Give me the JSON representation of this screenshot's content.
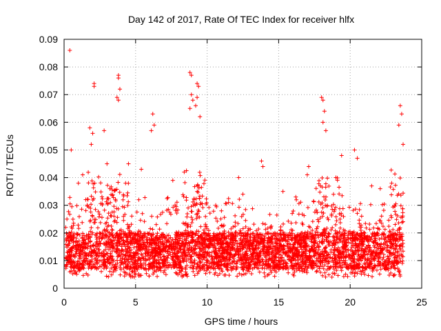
{
  "chart_data": {
    "type": "scatter",
    "title": "Day 142 of 2017, Rate Of TEC Index for receiver hlfx",
    "xlabel": "GPS time / hours",
    "ylabel": "ROTI / TECUs",
    "xlim": [
      0,
      25
    ],
    "ylim": [
      0,
      0.09
    ],
    "x_ticks": [
      "0",
      "5",
      "10",
      "15",
      "20",
      "25"
    ],
    "y_ticks": [
      "0",
      "0.01",
      "0.02",
      "0.03",
      "0.04",
      "0.05",
      "0.06",
      "0.07",
      "0.08",
      "0.09"
    ],
    "grid": true,
    "marker": "+",
    "color": "#ff0000",
    "series": [
      {
        "x": [
          0.4,
          0.5,
          2.1,
          2.1,
          3.8,
          3.8,
          3.9,
          3.7,
          3.8,
          8.8,
          8.9,
          8.9,
          9.0,
          8.8,
          9.3,
          9.4,
          9.3,
          9.2,
          9.5,
          6.2,
          6.3,
          6.1,
          1.8,
          2.0,
          1.9,
          2.8,
          13.8,
          13.9,
          17.1,
          17.0,
          18.0,
          18.1,
          18.2,
          18.1,
          18.3,
          23.5,
          23.6,
          23.4,
          23.7,
          20.3,
          20.5,
          19.4,
          4.5,
          5.4,
          12.2,
          12.5,
          0.2,
          1.0,
          1.3,
          3.0,
          3.2,
          4.3,
          7.6,
          8.4,
          10.6,
          11.0,
          11.5,
          15.3,
          16.2,
          19.0,
          21.5,
          22.1,
          22.9
        ],
        "y": [
          0.086,
          0.05,
          0.073,
          0.074,
          0.077,
          0.076,
          0.072,
          0.069,
          0.068,
          0.078,
          0.077,
          0.07,
          0.068,
          0.065,
          0.074,
          0.073,
          0.069,
          0.066,
          0.062,
          0.063,
          0.059,
          0.057,
          0.058,
          0.056,
          0.052,
          0.057,
          0.046,
          0.044,
          0.044,
          0.041,
          0.069,
          0.068,
          0.064,
          0.06,
          0.057,
          0.066,
          0.063,
          0.059,
          0.052,
          0.05,
          0.047,
          0.048,
          0.045,
          0.043,
          0.04,
          0.034,
          0.025,
          0.038,
          0.041,
          0.045,
          0.036,
          0.038,
          0.039,
          0.042,
          0.03,
          0.028,
          0.031,
          0.035,
          0.033,
          0.04,
          0.037,
          0.036,
          0.038
        ]
      }
    ]
  }
}
